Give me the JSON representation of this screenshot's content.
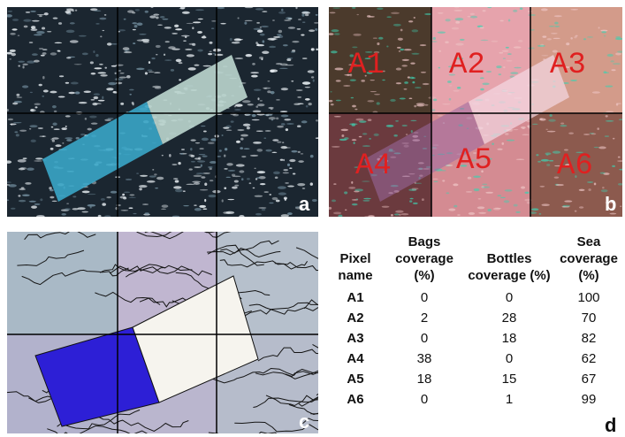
{
  "panels": [
    {
      "label": "a"
    },
    {
      "label": "b",
      "cells": [
        "A1",
        "A2",
        "A3",
        "A4",
        "A5",
        "A6"
      ]
    },
    {
      "label": "c"
    }
  ],
  "table": {
    "label": "d",
    "headers": [
      "Pixel name",
      "Bags coverage (%)",
      "Bottles coverage (%)",
      "Sea coverage (%)"
    ],
    "rows": [
      [
        "A1",
        0,
        0,
        100
      ],
      [
        "A2",
        2,
        28,
        70
      ],
      [
        "A3",
        0,
        18,
        82
      ],
      [
        "A4",
        38,
        0,
        62
      ],
      [
        "A5",
        18,
        15,
        67
      ],
      [
        "A6",
        0,
        1,
        99
      ]
    ]
  }
}
